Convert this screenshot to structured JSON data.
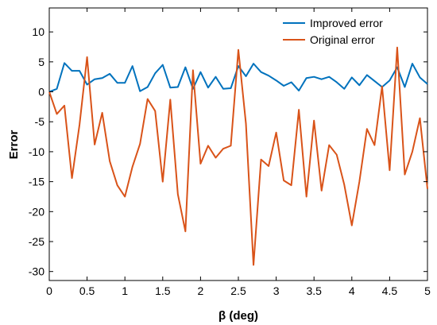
{
  "chart_data": {
    "type": "line",
    "xlabel": "β (deg)",
    "ylabel": "Error",
    "xlim": [
      0,
      5
    ],
    "ylim": [
      -31.5,
      14
    ],
    "xticks": [
      0,
      0.5,
      1,
      1.5,
      2,
      2.5,
      3,
      3.5,
      4,
      4.5,
      5
    ],
    "xtick_labels": [
      "0",
      "0.5",
      "1",
      "1.5",
      "2",
      "2.5",
      "3",
      "3.5",
      "4",
      "4.5",
      "5"
    ],
    "yticks": [
      10,
      5,
      0,
      -5,
      -10,
      -15,
      -20,
      -25,
      -30
    ],
    "ytick_labels": [
      "10",
      "5",
      "0",
      "-5",
      "-10",
      "-15",
      "-20",
      "-25",
      "-30"
    ],
    "grid": false,
    "legend_position": "top-right",
    "x": [
      0,
      0.1,
      0.2,
      0.3,
      0.4,
      0.5,
      0.6,
      0.7,
      0.8,
      0.9,
      1.0,
      1.1,
      1.2,
      1.3,
      1.4,
      1.5,
      1.6,
      1.7,
      1.8,
      1.9,
      2.0,
      2.1,
      2.2,
      2.3,
      2.4,
      2.5,
      2.6,
      2.7,
      2.8,
      2.9,
      3.0,
      3.1,
      3.2,
      3.3,
      3.4,
      3.5,
      3.6,
      3.7,
      3.8,
      3.9,
      4.0,
      4.1,
      4.2,
      4.3,
      4.4,
      4.5,
      4.6,
      4.7,
      4.8,
      4.9,
      5.0
    ],
    "series": [
      {
        "name": "Improved error",
        "color": "#0072BD",
        "values": [
          0,
          0.5,
          4.8,
          3.5,
          3.5,
          1.2,
          2.1,
          2.3,
          3.0,
          1.5,
          1.5,
          4.3,
          0.1,
          0.8,
          3.1,
          4.5,
          0.7,
          0.8,
          4.1,
          0.5,
          3.3,
          0.7,
          2.5,
          0.5,
          0.6,
          4.3,
          2.6,
          4.7,
          3.3,
          2.7,
          1.9,
          1.0,
          1.6,
          0.2,
          2.3,
          2.5,
          2.1,
          2.5,
          1.6,
          0.5,
          2.4,
          1.1,
          2.8,
          1.8,
          0.8,
          1.9,
          4.1,
          0.8,
          4.7,
          2.4,
          1.3
        ]
      },
      {
        "name": "Original error",
        "color": "#D95319",
        "values": [
          0,
          -3.7,
          -2.3,
          -14.4,
          -5.5,
          5.8,
          -8.8,
          -3.5,
          -11.6,
          -15.6,
          -17.5,
          -12.5,
          -8.7,
          -1.2,
          -3.2,
          -15.0,
          -1.3,
          -17.1,
          -23.3,
          3.6,
          -12.0,
          -9.0,
          -11.0,
          -9.5,
          -9.0,
          7.0,
          -5.3,
          -28.9,
          -11.3,
          -12.4,
          -6.8,
          -14.8,
          -15.6,
          -3.0,
          -17.5,
          -4.8,
          -16.5,
          -8.9,
          -10.5,
          -15.5,
          -22.3,
          -15.0,
          -6.2,
          -8.9,
          0.9,
          -13.1,
          7.4,
          -13.8,
          -10.0,
          -4.4,
          -16.2
        ]
      }
    ]
  }
}
